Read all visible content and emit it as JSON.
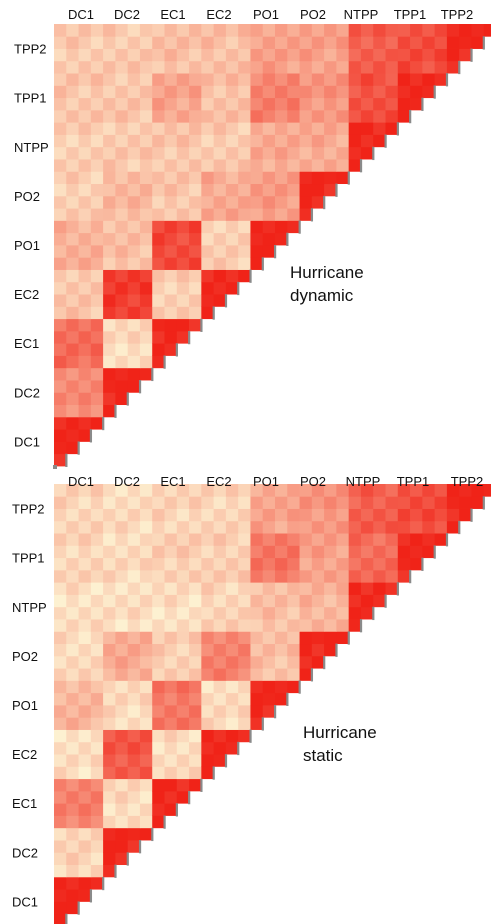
{
  "colors": {
    "low": "#fdf3d3",
    "high": "#f02318",
    "staircase": "#8a8a8a"
  },
  "chart_data": [
    {
      "type": "heatmap",
      "caption_lines": [
        "Hurricane",
        "dynamic"
      ],
      "categories": [
        "DC1",
        "DC2",
        "EC1",
        "EC2",
        "PO1",
        "PO2",
        "NTPP",
        "TPP1",
        "TPP2"
      ],
      "ylabels_top_to_bottom": [
        "TPP2",
        "TPP1",
        "NTPP",
        "PO2",
        "PO1",
        "EC2",
        "EC1",
        "DC2",
        "DC1"
      ],
      "block_values": [
        [
          1.0,
          0.5,
          0.65,
          0.22,
          0.32,
          0.18,
          0.18,
          0.22,
          0.2
        ],
        [
          0.5,
          1.0,
          0.12,
          0.88,
          0.25,
          0.28,
          0.2,
          0.22,
          0.2
        ],
        [
          0.65,
          0.12,
          1.0,
          0.18,
          0.82,
          0.22,
          0.22,
          0.38,
          0.25
        ],
        [
          0.22,
          0.88,
          0.18,
          1.0,
          0.18,
          0.35,
          0.2,
          0.25,
          0.25
        ],
        [
          0.32,
          0.25,
          0.82,
          0.18,
          1.0,
          0.42,
          0.35,
          0.55,
          0.4
        ],
        [
          0.18,
          0.28,
          0.22,
          0.35,
          0.42,
          1.0,
          0.35,
          0.45,
          0.4
        ],
        [
          0.18,
          0.2,
          0.22,
          0.2,
          0.35,
          0.35,
          1.0,
          0.78,
          0.72
        ],
        [
          0.22,
          0.22,
          0.38,
          0.25,
          0.55,
          0.45,
          0.78,
          1.0,
          0.8
        ],
        [
          0.2,
          0.2,
          0.25,
          0.25,
          0.4,
          0.4,
          0.72,
          0.8,
          1.0
        ]
      ],
      "value_range": [
        0,
        1
      ]
    },
    {
      "type": "heatmap",
      "caption_lines": [
        "Hurricane",
        "static"
      ],
      "categories": [
        "DC1",
        "DC2",
        "EC1",
        "EC2",
        "PO1",
        "PO2",
        "NTPP",
        "TPP1",
        "TPP2"
      ],
      "ylabels_top_to_bottom": [
        "TPP2",
        "TPP1",
        "NTPP",
        "PO2",
        "PO1",
        "EC2",
        "EC1",
        "DC2",
        "DC1"
      ],
      "block_values": [
        [
          1.0,
          0.15,
          0.55,
          0.1,
          0.3,
          0.12,
          0.1,
          0.15,
          0.15
        ],
        [
          0.15,
          1.0,
          0.12,
          0.75,
          0.12,
          0.35,
          0.1,
          0.12,
          0.12
        ],
        [
          0.55,
          0.12,
          1.0,
          0.12,
          0.6,
          0.18,
          0.1,
          0.18,
          0.15
        ],
        [
          0.1,
          0.75,
          0.12,
          1.0,
          0.12,
          0.55,
          0.15,
          0.18,
          0.15
        ],
        [
          0.3,
          0.12,
          0.6,
          0.12,
          1.0,
          0.25,
          0.25,
          0.6,
          0.38
        ],
        [
          0.12,
          0.35,
          0.18,
          0.55,
          0.25,
          1.0,
          0.3,
          0.4,
          0.45
        ],
        [
          0.1,
          0.1,
          0.1,
          0.15,
          0.25,
          0.3,
          1.0,
          0.65,
          0.72
        ],
        [
          0.15,
          0.12,
          0.18,
          0.18,
          0.6,
          0.4,
          0.65,
          1.0,
          0.8
        ],
        [
          0.15,
          0.12,
          0.15,
          0.15,
          0.38,
          0.45,
          0.72,
          0.8,
          1.0
        ]
      ],
      "value_range": [
        0,
        1
      ]
    }
  ]
}
